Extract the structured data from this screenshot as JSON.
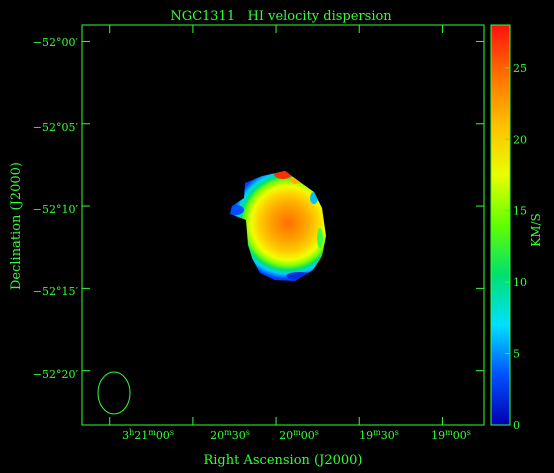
{
  "chart_data": {
    "type": "heatmap",
    "title": "NGC1311   HI velocity dispersion",
    "xlabel": "Right Ascension (J2000)",
    "ylabel": "Declination (J2000)",
    "colorbar_label": "KM/S",
    "colorbar_range": [
      0,
      28
    ],
    "colorbar_ticks": [
      "0",
      "5",
      "10",
      "15",
      "20",
      "25"
    ],
    "colormap": [
      "#0000b0",
      "#0050ff",
      "#00e0ff",
      "#00e070",
      "#60ff00",
      "#e8ff00",
      "#ffc000",
      "#ff7000",
      "#ff1010"
    ],
    "x_ticks": [
      {
        "pre": "3",
        "s1": "h",
        "mid": "21",
        "s2": "m",
        "post": "00",
        "s3": "s",
        "value_s": 0
      },
      {
        "pre": "",
        "s1": "",
        "mid": "20",
        "s2": "m",
        "post": "30",
        "s3": "s",
        "value_s": 30
      },
      {
        "pre": "",
        "s1": "",
        "mid": "20",
        "s2": "m",
        "post": "00",
        "s3": "s",
        "value_s": 60
      },
      {
        "pre": "",
        "s1": "",
        "mid": "19",
        "s2": "m",
        "post": "30",
        "s3": "s",
        "value_s": 90
      },
      {
        "pre": "",
        "s1": "",
        "mid": "19",
        "s2": "m",
        "post": "00",
        "s3": "s",
        "value_s": 120
      }
    ],
    "y_ticks": [
      {
        "label": "−52°00′",
        "value_arcmin": 0
      },
      {
        "label": "−52°05′",
        "value_arcmin": 5
      },
      {
        "label": "−52°10′",
        "value_arcmin": 10
      },
      {
        "label": "−52°15′",
        "value_arcmin": 15
      },
      {
        "label": "−52°20′",
        "value_arcmin": 20
      }
    ],
    "x_range_s": [
      -10,
      135
    ],
    "y_range_arcmin": [
      -1.0,
      23.3
    ],
    "beam": {
      "ra_s": -5,
      "dec_arcmin": 21.2,
      "major_arcmin": 2.5,
      "minor_arcmin": 1.9
    },
    "galaxy": {
      "center_ra_s": 59,
      "center_dec_arcmin": 11.0,
      "peak_kms": 27,
      "edge_kms": 11
    },
    "colors": {
      "axis": "#33ff33",
      "background": "#000000"
    }
  }
}
